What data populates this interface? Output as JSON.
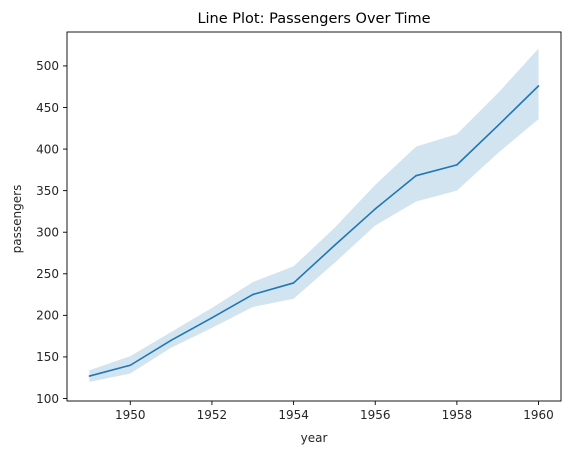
{
  "chart_data": {
    "type": "line",
    "title": "Line Plot: Passengers Over Time",
    "xlabel": "year",
    "ylabel": "passengers",
    "xlim": [
      1948.45,
      1960.55
    ],
    "ylim": [
      97.0,
      540.8
    ],
    "x_ticks": [
      1950,
      1952,
      1954,
      1956,
      1958,
      1960
    ],
    "y_ticks": [
      100,
      150,
      200,
      250,
      300,
      350,
      400,
      450,
      500
    ],
    "grid": false,
    "legend": "none",
    "colors": {
      "line": "#1f77b4",
      "band": "#1f77b4"
    },
    "series": [
      {
        "x": [
          1949,
          1950,
          1951,
          1952,
          1953,
          1954,
          1955,
          1956,
          1957,
          1958,
          1959,
          1960
        ],
        "y": [
          127,
          140,
          170,
          197,
          225,
          239,
          284,
          328,
          368,
          381,
          428,
          476
        ],
        "ci_lower": [
          120,
          130,
          161,
          185,
          210,
          220,
          263,
          308,
          337,
          350,
          395,
          436
        ],
        "ci_upper": [
          134,
          151,
          180,
          209,
          240,
          259,
          305,
          357,
          403,
          418,
          467,
          521
        ]
      }
    ]
  }
}
